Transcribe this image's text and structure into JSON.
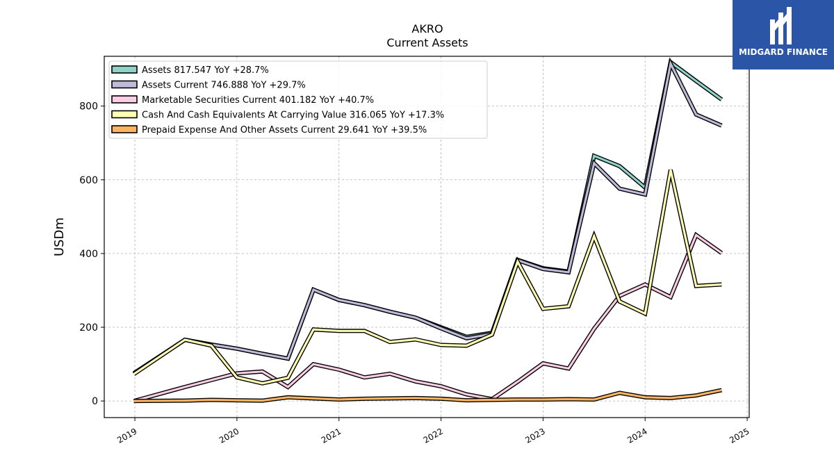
{
  "logo": {
    "text": "MIDGARD FINANCE",
    "background": "#2b56a8"
  },
  "chart_data": {
    "type": "line",
    "title": "AKRO",
    "subtitle": "Current  Assets",
    "ylabel": "USDm",
    "xlabel": "",
    "ylim": [
      -45,
      935
    ],
    "xlim": [
      2018.7,
      2025.02
    ],
    "yticks": [
      0,
      200,
      400,
      600,
      800
    ],
    "xticks": [
      2019,
      2020,
      2021,
      2022,
      2023,
      2024,
      2025
    ],
    "grid": true,
    "legend_position": "top-left",
    "series": [
      {
        "name": "Assets  817.547 YoY +28.7%",
        "color": "#8dd3c7",
        "x": [
          2018.99,
          2019.49,
          2019.75,
          2020.0,
          2020.25,
          2020.5,
          2020.75,
          2021.0,
          2021.25,
          2021.5,
          2021.75,
          2022.0,
          2022.25,
          2022.5,
          2022.75,
          2023.0,
          2023.25,
          2023.5,
          2023.75,
          2024.0,
          2024.25,
          2024.5,
          2024.75
        ],
        "values": [
          75,
          166,
          153,
          142,
          128,
          115,
          302,
          274,
          260,
          242,
          226,
          200,
          174,
          185,
          383,
          360,
          351,
          665,
          637,
          579,
          919,
          868,
          817.5
        ]
      },
      {
        "name": "Assets Current  746.888 YoY +29.7%",
        "color": "#bebada",
        "x": [
          2018.99,
          2019.49,
          2019.75,
          2020.0,
          2020.25,
          2020.5,
          2020.75,
          2021.0,
          2021.25,
          2021.5,
          2021.75,
          2022.0,
          2022.25,
          2022.5,
          2022.75,
          2023.0,
          2023.25,
          2023.5,
          2023.75,
          2024.0,
          2024.25,
          2024.5,
          2024.75
        ],
        "values": [
          75,
          166,
          153,
          142,
          128,
          115,
          302,
          274,
          260,
          242,
          226,
          197,
          170,
          182,
          382,
          358,
          349,
          645,
          576,
          560,
          915,
          777,
          746.9
        ]
      },
      {
        "name": "Marketable Securities Current  401.182 YoY +40.7%",
        "color": "#fccde5",
        "x": [
          2018.99,
          2019.49,
          2019.75,
          2020.0,
          2020.25,
          2020.5,
          2020.75,
          2021.0,
          2021.25,
          2021.5,
          2021.75,
          2022.0,
          2022.25,
          2022.5,
          2022.75,
          2023.0,
          2023.25,
          2023.5,
          2023.75,
          2024.0,
          2024.25,
          2024.5,
          2024.75
        ],
        "values": [
          0,
          38,
          57,
          75,
          80,
          38,
          100,
          85,
          64,
          74,
          53,
          40,
          18,
          5,
          52,
          102,
          88,
          196,
          285,
          316,
          282,
          450,
          401.2
        ]
      },
      {
        "name": "Cash And Cash Equivalents At Carrying Value  316.065 YoY +17.3%",
        "color": "#ffffb3",
        "x": [
          2018.99,
          2019.49,
          2019.75,
          2020.0,
          2020.25,
          2020.5,
          2020.75,
          2021.0,
          2021.25,
          2021.5,
          2021.75,
          2022.0,
          2022.25,
          2022.5,
          2022.75,
          2023.0,
          2023.25,
          2023.5,
          2023.75,
          2024.0,
          2024.25,
          2024.5,
          2024.75
        ],
        "values": [
          73,
          166,
          150,
          64,
          48,
          63,
          194,
          190,
          190,
          160,
          167,
          152,
          150,
          180,
          378,
          250,
          257,
          447,
          270,
          237,
          627,
          312,
          316.1
        ]
      },
      {
        "name": "Prepaid Expense And Other Assets Current  29.641 YoY +39.5%",
        "color": "#fdb462",
        "x": [
          2018.99,
          2019.49,
          2019.75,
          2020.0,
          2020.25,
          2020.5,
          2020.75,
          2021.0,
          2021.25,
          2021.5,
          2021.75,
          2022.0,
          2022.25,
          2022.5,
          2022.75,
          2023.0,
          2023.25,
          2023.5,
          2023.75,
          2024.0,
          2024.25,
          2024.5,
          2024.75
        ],
        "values": [
          0,
          1,
          3,
          2,
          1,
          10,
          7,
          4,
          6,
          7,
          8,
          6,
          2,
          3,
          4,
          4,
          5,
          4,
          22,
          10,
          8,
          15,
          29.6
        ]
      }
    ]
  }
}
